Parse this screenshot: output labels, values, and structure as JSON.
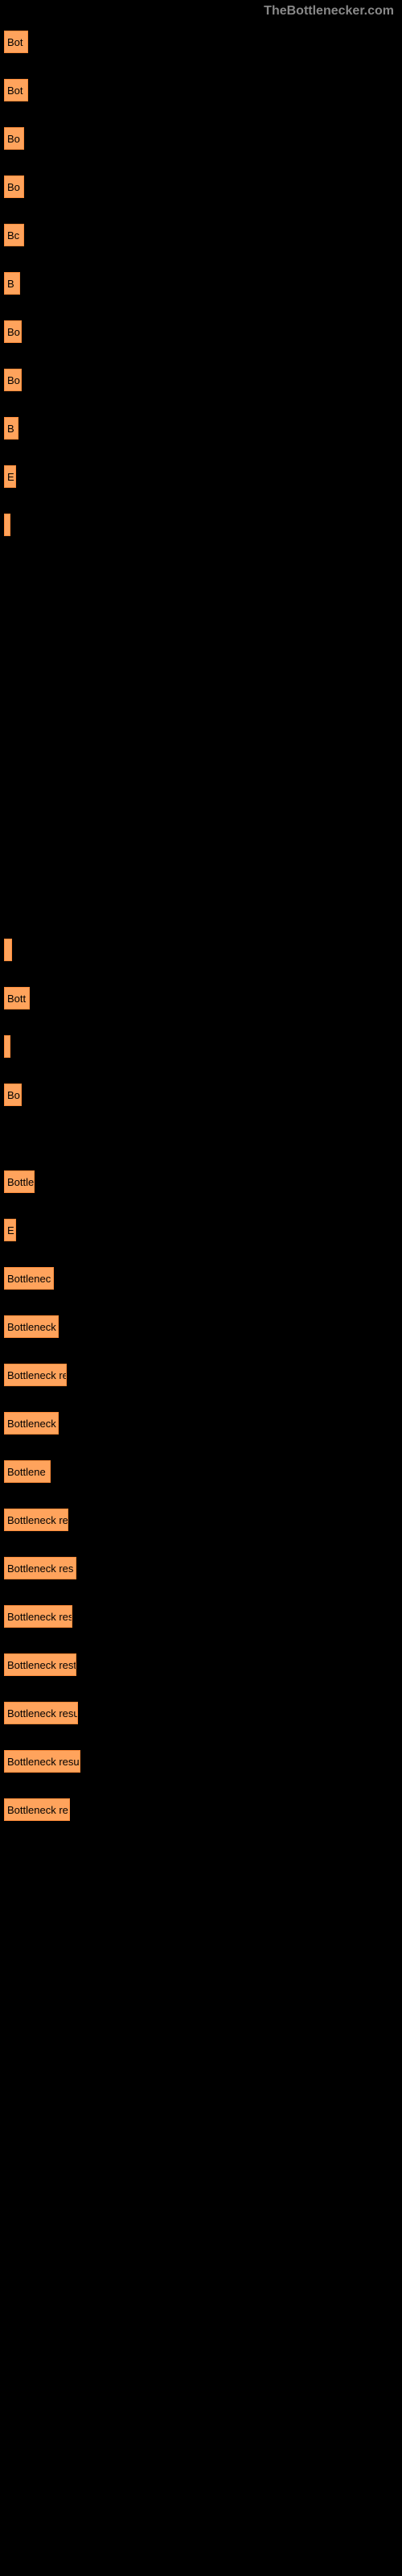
{
  "header": {
    "watermark": "TheBottlenecker.com"
  },
  "chart": {
    "type": "bar",
    "background_color": "#000000",
    "bar_color": "#ffa35c",
    "bar_border_color": "#ff8c3a",
    "label_color": "#000000",
    "label_fontsize": 13,
    "bars": [
      {
        "width": 30,
        "label": "Bot",
        "gap_after": 32
      },
      {
        "width": 30,
        "label": "Bot",
        "gap_after": 32
      },
      {
        "width": 25,
        "label": "Bo",
        "gap_after": 32
      },
      {
        "width": 25,
        "label": "Bo",
        "gap_after": 32
      },
      {
        "width": 25,
        "label": "Bc",
        "gap_after": 32
      },
      {
        "width": 20,
        "label": "B",
        "gap_after": 32
      },
      {
        "width": 22,
        "label": "Bo",
        "gap_after": 32
      },
      {
        "width": 22,
        "label": "Bo",
        "gap_after": 32
      },
      {
        "width": 18,
        "label": "B",
        "gap_after": 32
      },
      {
        "width": 15,
        "label": "E",
        "gap_after": 32
      },
      {
        "width": 8,
        "label": "",
        "gap_after": 500
      },
      {
        "width": 10,
        "label": "",
        "gap_after": 32
      },
      {
        "width": 32,
        "label": "Bott",
        "gap_after": 32
      },
      {
        "width": 8,
        "label": "",
        "gap_after": 32
      },
      {
        "width": 22,
        "label": "Bo",
        "gap_after": 80
      },
      {
        "width": 38,
        "label": "Bottle",
        "gap_after": 32
      },
      {
        "width": 15,
        "label": "E",
        "gap_after": 32
      },
      {
        "width": 62,
        "label": "Bottlenec",
        "gap_after": 32
      },
      {
        "width": 68,
        "label": "Bottleneck",
        "gap_after": 32
      },
      {
        "width": 78,
        "label": "Bottleneck re",
        "gap_after": 32
      },
      {
        "width": 68,
        "label": "Bottleneck",
        "gap_after": 32
      },
      {
        "width": 58,
        "label": "Bottlene",
        "gap_after": 32
      },
      {
        "width": 80,
        "label": "Bottleneck re",
        "gap_after": 32
      },
      {
        "width": 90,
        "label": "Bottleneck res",
        "gap_after": 32
      },
      {
        "width": 85,
        "label": "Bottleneck res",
        "gap_after": 32
      },
      {
        "width": 90,
        "label": "Bottleneck rest",
        "gap_after": 32
      },
      {
        "width": 92,
        "label": "Bottleneck resu",
        "gap_after": 32
      },
      {
        "width": 95,
        "label": "Bottleneck resu",
        "gap_after": 32
      },
      {
        "width": 82,
        "label": "Bottleneck re",
        "gap_after": 0
      }
    ]
  }
}
